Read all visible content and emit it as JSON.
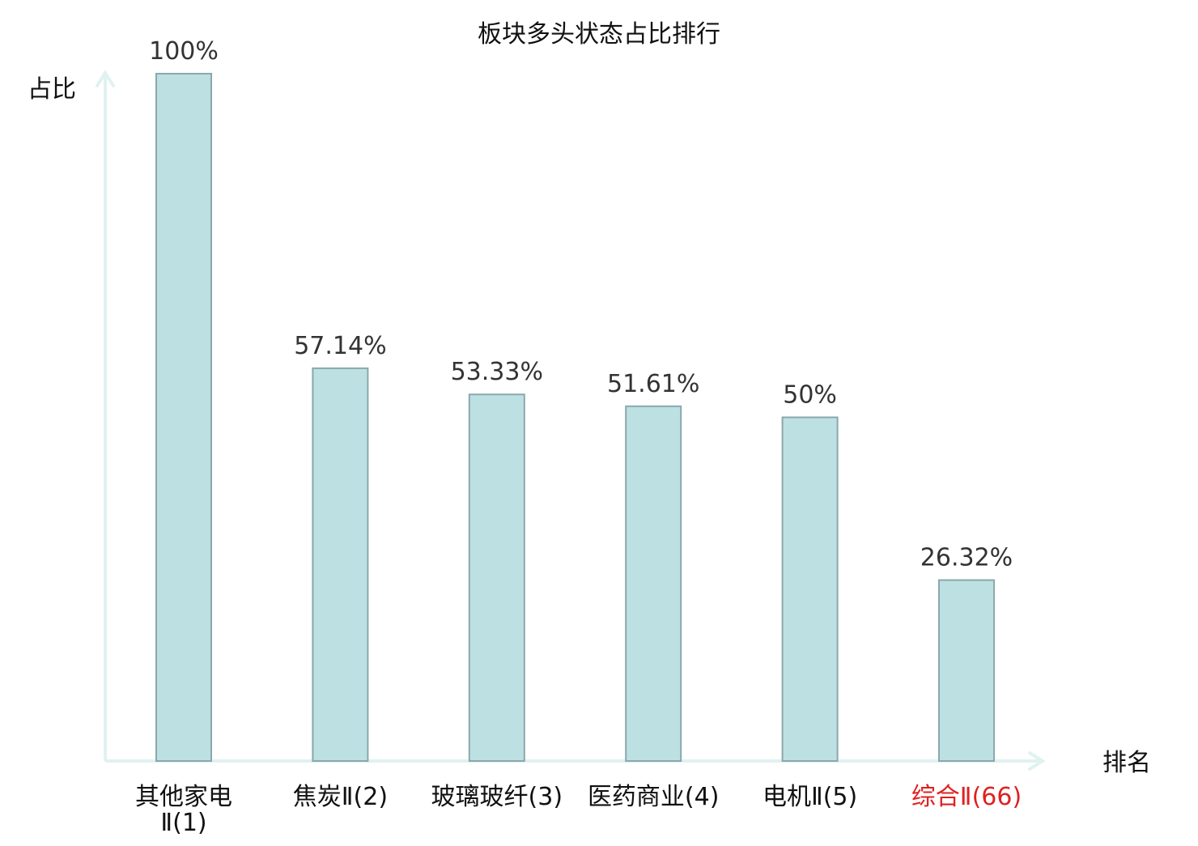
{
  "chart_data": {
    "type": "bar",
    "title": "板块多头状态占比排行",
    "xlabel": "排名",
    "ylabel": "占比",
    "ylim": [
      0,
      100
    ],
    "grid": false,
    "categories": [
      {
        "lines": [
          "其他家电",
          "Ⅱ(1)"
        ],
        "highlight": false
      },
      {
        "lines": [
          "焦炭Ⅱ(2)"
        ],
        "highlight": false
      },
      {
        "lines": [
          "玻璃玻纤(3)"
        ],
        "highlight": false
      },
      {
        "lines": [
          "医药商业(4)"
        ],
        "highlight": false
      },
      {
        "lines": [
          "电机Ⅱ(5)"
        ],
        "highlight": false
      },
      {
        "lines": [
          "综合Ⅱ(66)"
        ],
        "highlight": true
      }
    ],
    "values": [
      100,
      57.14,
      53.33,
      51.61,
      50,
      26.32
    ],
    "value_labels": [
      "100%",
      "57.14%",
      "53.33%",
      "51.61%",
      "50%",
      "26.32%"
    ],
    "colors": {
      "bar_fill": "#bde0e3",
      "bar_stroke": "#8aa8ac",
      "axis": "#e0f2ef",
      "category_text": "#111111",
      "highlight_text": "#e02020"
    }
  }
}
